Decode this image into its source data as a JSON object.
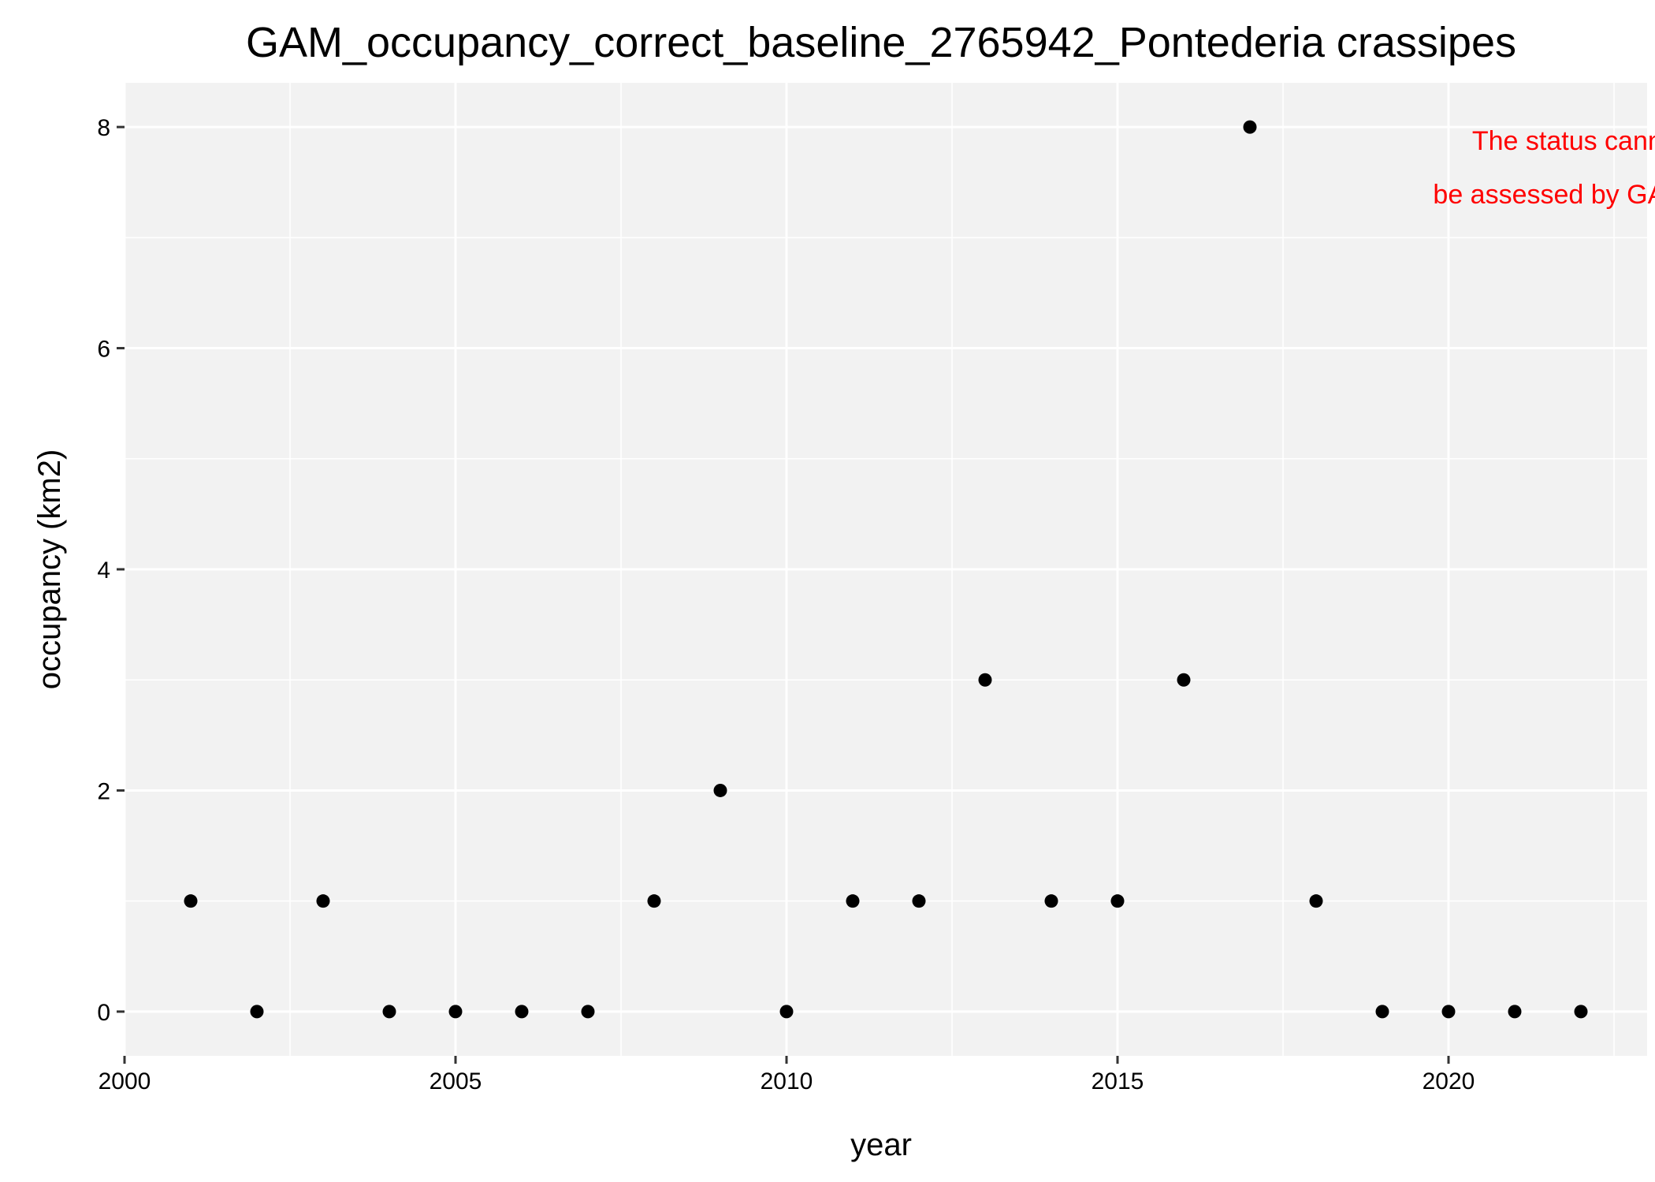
{
  "chart_data": {
    "type": "scatter",
    "title": "GAM_occupancy_correct_baseline_2765942_Pontederia crassipes",
    "xlabel": "year",
    "ylabel": "occupancy (km2)",
    "xlim": [
      2000,
      2023
    ],
    "ylim": [
      -0.4,
      8.4
    ],
    "x_ticks": [
      2000,
      2005,
      2010,
      2015,
      2020
    ],
    "x_tick_labels": [
      "2000",
      "2005",
      "2010",
      "2015",
      "2020"
    ],
    "y_ticks": [
      0,
      2,
      4,
      6,
      8
    ],
    "y_tick_labels": [
      "0",
      "2",
      "4",
      "6",
      "8"
    ],
    "grid": true,
    "background": "#f2f2f2",
    "grid_color": "#ffffff",
    "point_color": "#000000",
    "series": [
      {
        "x": [
          2001,
          2002,
          2003,
          2004,
          2005,
          2006,
          2007,
          2008,
          2009,
          2010,
          2011,
          2012,
          2013,
          2014,
          2015,
          2016,
          2017,
          2018,
          2019,
          2020,
          2021,
          2022
        ],
        "y": [
          1,
          0,
          1,
          0,
          0,
          0,
          0,
          1,
          2,
          0,
          1,
          1,
          3,
          1,
          1,
          3,
          8,
          1,
          0,
          0,
          0,
          0
        ]
      }
    ],
    "annotation": {
      "lines": [
        "The status cannot",
        "be assessed by GAM"
      ],
      "color": "#ff0000",
      "placement": "top-right"
    }
  }
}
